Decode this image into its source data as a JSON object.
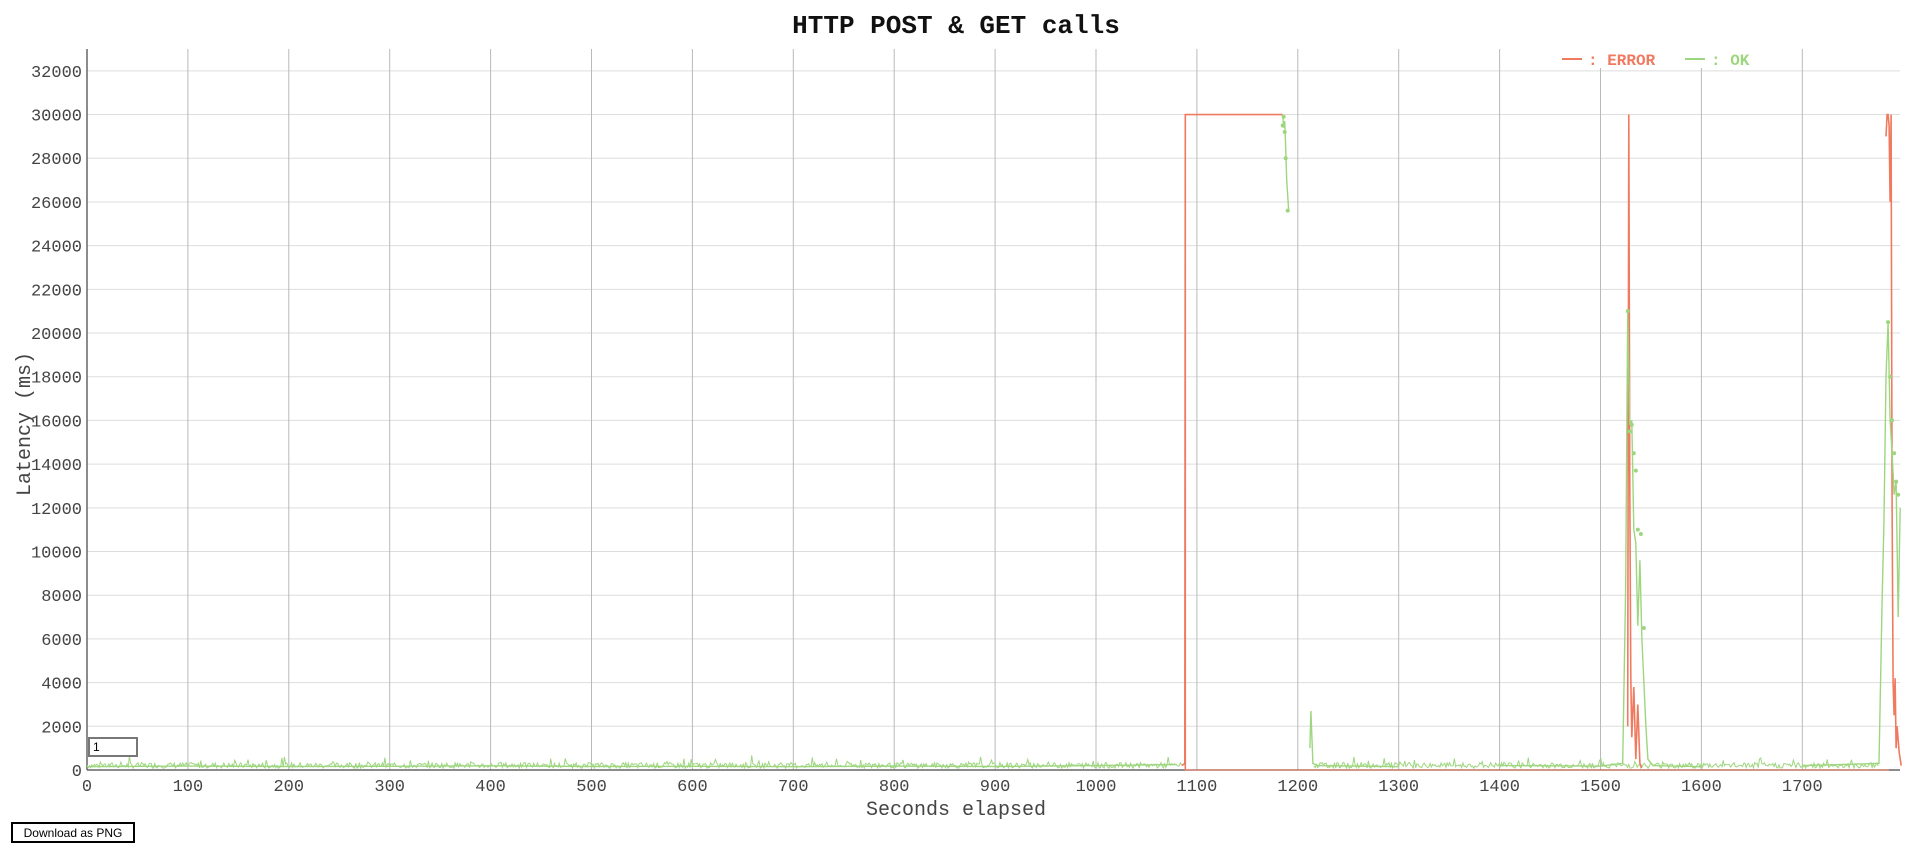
{
  "download_button_label": "Download as PNG",
  "smoothing_input_value": "1",
  "chart_data": {
    "type": "line",
    "title": "HTTP POST & GET calls",
    "xlabel": "Seconds elapsed",
    "ylabel": "Latency (ms)",
    "xlim": [
      0,
      1800
    ],
    "ylim": [
      0,
      33000
    ],
    "x_ticks": [
      0,
      100,
      200,
      300,
      400,
      500,
      600,
      700,
      800,
      900,
      1000,
      1100,
      1200,
      1300,
      1400,
      1500,
      1600,
      1700
    ],
    "y_ticks": [
      0,
      2000,
      4000,
      6000,
      8000,
      10000,
      12000,
      14000,
      16000,
      18000,
      20000,
      22000,
      24000,
      26000,
      28000,
      30000,
      32000
    ],
    "grid": true,
    "legend_position": "top-right",
    "series": [
      {
        "name": ": ERROR",
        "color": "#f07a5f",
        "x": [
          1085,
          1088,
          1088.5,
          1185,
          1527,
          1528,
          1529,
          1530,
          1531,
          1533,
          1535,
          1537,
          1539,
          1541,
          1783,
          1784,
          1785,
          1786,
          1787,
          1788,
          1789,
          1790,
          1791,
          1792,
          1793,
          1794,
          1796,
          1798
        ],
        "y": [
          200,
          300,
          30000,
          30000,
          2000,
          30000,
          13000,
          4200,
          1500,
          3800,
          500,
          3000,
          300,
          100,
          29000,
          30000,
          30000,
          29500,
          26000,
          30000,
          12000,
          4000,
          2500,
          4200,
          1000,
          2000,
          800,
          200
        ]
      },
      {
        "name": ": OK",
        "color": "#9dd67f",
        "x": [
          0,
          100,
          200,
          300,
          400,
          500,
          600,
          700,
          800,
          900,
          1000,
          1080,
          1086,
          1185,
          1186,
          1187,
          1188,
          1189,
          1191,
          1212,
          1213,
          1215,
          1220,
          1300,
          1400,
          1500,
          1522,
          1525,
          1527,
          1529,
          1531,
          1533,
          1535,
          1537,
          1539,
          1541,
          1543,
          1545,
          1547,
          1552,
          1600,
          1700,
          1776,
          1779,
          1781,
          1783,
          1785,
          1787,
          1789,
          1791,
          1793,
          1795,
          1797
        ],
        "y": [
          150,
          180,
          160,
          170,
          190,
          160,
          170,
          150,
          180,
          160,
          200,
          250,
          120,
          30000,
          29400,
          29700,
          28500,
          27000,
          25600,
          1000,
          2700,
          300,
          200,
          150,
          200,
          180,
          300,
          8500,
          21000,
          15800,
          16000,
          11000,
          10400,
          6600,
          9600,
          6000,
          4000,
          2000,
          500,
          200,
          150,
          200,
          300,
          7500,
          11500,
          18000,
          20500,
          16000,
          14500,
          12600,
          13200,
          7000,
          12000
        ]
      }
    ],
    "ok_points_x": [
      1185,
      1186,
      1187,
      1188,
      1190,
      1527,
      1529,
      1531,
      1533,
      1535,
      1537,
      1540,
      1543,
      1785,
      1787,
      1789,
      1791,
      1793,
      1795
    ],
    "ok_points_y": [
      29500,
      29900,
      29200,
      28000,
      25600,
      21000,
      15500,
      15800,
      14500,
      13700,
      11000,
      10800,
      6500,
      20500,
      18000,
      16000,
      14500,
      13200,
      12600
    ]
  }
}
